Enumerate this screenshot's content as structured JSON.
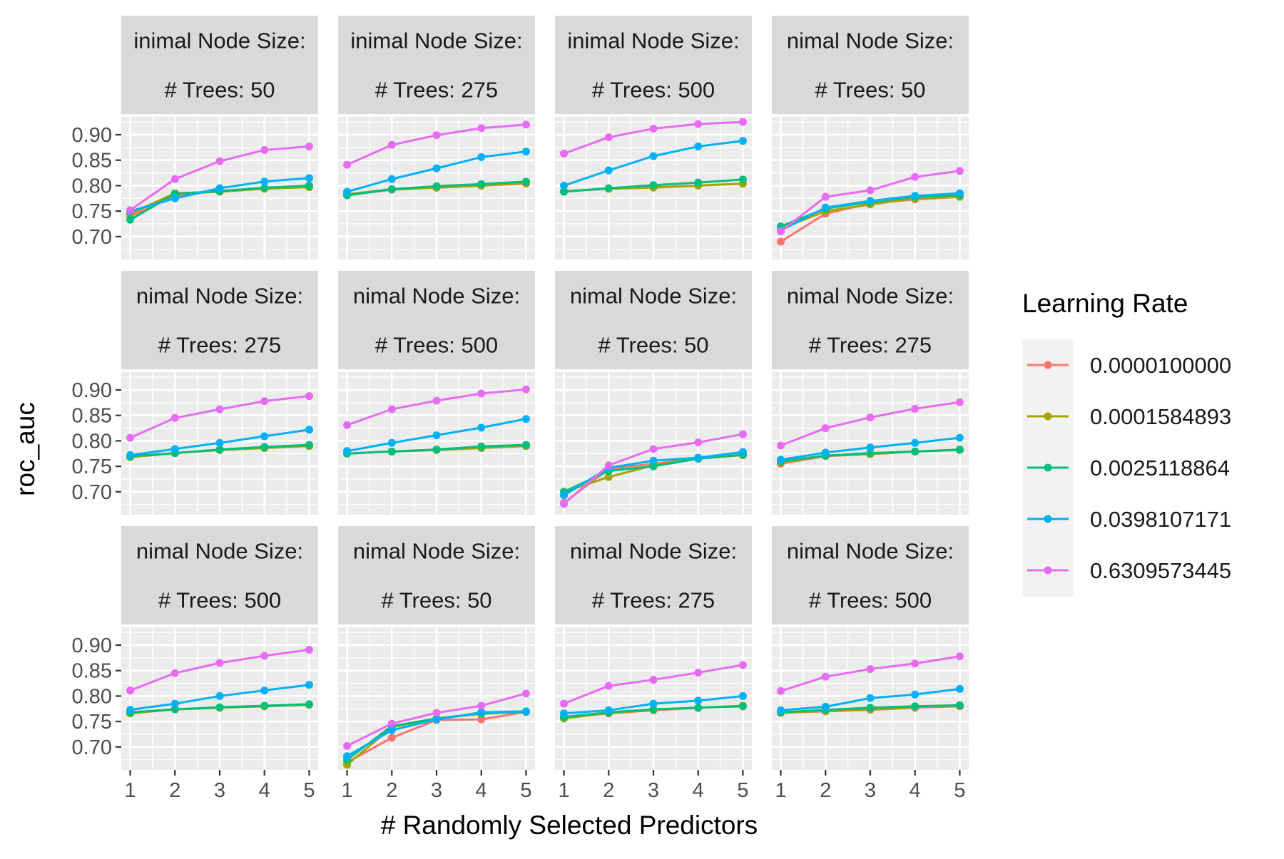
{
  "chart_data": {
    "type": "line",
    "xlabel": "# Randomly Selected Predictors",
    "ylabel": "roc_auc",
    "x": [
      1,
      2,
      3,
      4,
      5
    ],
    "x_ticks": [
      "1",
      "2",
      "3",
      "4",
      "5"
    ],
    "ylim": [
      0.655,
      0.935
    ],
    "y_ticks": [
      "0.70",
      "0.75",
      "0.80",
      "0.85",
      "0.90"
    ],
    "y_tick_values": [
      0.7,
      0.75,
      0.8,
      0.85,
      0.9
    ],
    "grid": true,
    "legend": {
      "title": "Learning Rate",
      "placement": "right",
      "entries": [
        "0.0000100000",
        "0.0001584893",
        "0.0025118864",
        "0.0398107171",
        "0.6309573445"
      ]
    },
    "colors": [
      "#F8766D",
      "#A3A500",
      "#00BF7D",
      "#00B0F6",
      "#E76BF3"
    ],
    "panels": [
      {
        "strip_top": "inimal Node Size:",
        "strip_bottom": "# Trees: 50",
        "series": [
          {
            "name": "0.0000100000",
            "values": [
              0.74,
              0.78,
              0.79,
              0.795,
              0.8
            ]
          },
          {
            "name": "0.0001584893",
            "values": [
              0.745,
              0.785,
              0.788,
              0.794,
              0.797
            ]
          },
          {
            "name": "0.0025118864",
            "values": [
              0.733,
              0.784,
              0.789,
              0.796,
              0.8
            ]
          },
          {
            "name": "0.0398107171",
            "values": [
              0.75,
              0.775,
              0.795,
              0.808,
              0.815
            ]
          },
          {
            "name": "0.6309573445",
            "values": [
              0.752,
              0.813,
              0.848,
              0.87,
              0.877
            ]
          }
        ]
      },
      {
        "strip_top": "inimal Node Size:",
        "strip_bottom": "# Trees: 275",
        "series": [
          {
            "name": "0.0000100000",
            "values": [
              0.782,
              0.792,
              0.796,
              0.8,
              0.804
            ]
          },
          {
            "name": "0.0001584893",
            "values": [
              0.783,
              0.793,
              0.796,
              0.8,
              0.805
            ]
          },
          {
            "name": "0.0025118864",
            "values": [
              0.781,
              0.793,
              0.799,
              0.803,
              0.808
            ]
          },
          {
            "name": "0.0398107171",
            "values": [
              0.788,
              0.813,
              0.834,
              0.856,
              0.867
            ]
          },
          {
            "name": "0.6309573445",
            "values": [
              0.841,
              0.88,
              0.899,
              0.913,
              0.92
            ]
          }
        ]
      },
      {
        "strip_top": "inimal Node Size:",
        "strip_bottom": "# Trees: 500",
        "series": [
          {
            "name": "0.0000100000",
            "values": [
              0.789,
              0.794,
              0.797,
              0.8,
              0.804
            ]
          },
          {
            "name": "0.0001584893",
            "values": [
              0.789,
              0.794,
              0.796,
              0.8,
              0.804
            ]
          },
          {
            "name": "0.0025118864",
            "values": [
              0.788,
              0.795,
              0.801,
              0.806,
              0.812
            ]
          },
          {
            "name": "0.0398107171",
            "values": [
              0.8,
              0.83,
              0.858,
              0.877,
              0.888
            ]
          },
          {
            "name": "0.6309573445",
            "values": [
              0.863,
              0.895,
              0.912,
              0.921,
              0.925
            ]
          }
        ]
      },
      {
        "strip_top": "nimal Node Size:",
        "strip_bottom": "# Trees: 50",
        "series": [
          {
            "name": "0.0000100000",
            "values": [
              0.69,
              0.745,
              0.765,
              0.773,
              0.778
            ]
          },
          {
            "name": "0.0001584893",
            "values": [
              0.715,
              0.75,
              0.763,
              0.775,
              0.778
            ]
          },
          {
            "name": "0.0025118864",
            "values": [
              0.72,
              0.755,
              0.768,
              0.778,
              0.782
            ]
          },
          {
            "name": "0.0398107171",
            "values": [
              0.712,
              0.757,
              0.77,
              0.78,
              0.785
            ]
          },
          {
            "name": "0.6309573445",
            "values": [
              0.71,
              0.778,
              0.791,
              0.817,
              0.829
            ]
          }
        ]
      },
      {
        "strip_top": "nimal Node Size:",
        "strip_bottom": "# Trees: 275",
        "series": [
          {
            "name": "0.0000100000",
            "values": [
              0.768,
              0.776,
              0.782,
              0.786,
              0.79
            ]
          },
          {
            "name": "0.0001584893",
            "values": [
              0.768,
              0.776,
              0.782,
              0.786,
              0.79
            ]
          },
          {
            "name": "0.0025118864",
            "values": [
              0.77,
              0.776,
              0.783,
              0.788,
              0.792
            ]
          },
          {
            "name": "0.0398107171",
            "values": [
              0.772,
              0.784,
              0.796,
              0.809,
              0.822
            ]
          },
          {
            "name": "0.6309573445",
            "values": [
              0.806,
              0.845,
              0.862,
              0.878,
              0.888
            ]
          }
        ]
      },
      {
        "strip_top": "nimal Node Size:",
        "strip_bottom": "# Trees: 500",
        "series": [
          {
            "name": "0.0000100000",
            "values": [
              0.775,
              0.779,
              0.782,
              0.786,
              0.79
            ]
          },
          {
            "name": "0.0001584893",
            "values": [
              0.775,
              0.779,
              0.782,
              0.786,
              0.79
            ]
          },
          {
            "name": "0.0025118864",
            "values": [
              0.775,
              0.779,
              0.783,
              0.789,
              0.792
            ]
          },
          {
            "name": "0.0398107171",
            "values": [
              0.78,
              0.796,
              0.811,
              0.826,
              0.843
            ]
          },
          {
            "name": "0.6309573445",
            "values": [
              0.831,
              0.862,
              0.879,
              0.893,
              0.901
            ]
          }
        ]
      },
      {
        "strip_top": "nimal Node Size:",
        "strip_bottom": "# Trees: 50",
        "series": [
          {
            "name": "0.0000100000",
            "values": [
              0.678,
              0.745,
              0.755,
              0.765,
              0.772
            ]
          },
          {
            "name": "0.0001584893",
            "values": [
              0.7,
              0.729,
              0.752,
              0.766,
              0.772
            ]
          },
          {
            "name": "0.0025118864",
            "values": [
              0.7,
              0.741,
              0.75,
              0.765,
              0.773
            ]
          },
          {
            "name": "0.0398107171",
            "values": [
              0.693,
              0.747,
              0.761,
              0.767,
              0.778
            ]
          },
          {
            "name": "0.6309573445",
            "values": [
              0.676,
              0.752,
              0.784,
              0.797,
              0.813
            ]
          }
        ]
      },
      {
        "strip_top": "nimal Node Size:",
        "strip_bottom": "# Trees: 275",
        "series": [
          {
            "name": "0.0000100000",
            "values": [
              0.755,
              0.77,
              0.774,
              0.779,
              0.782
            ]
          },
          {
            "name": "0.0001584893",
            "values": [
              0.758,
              0.771,
              0.774,
              0.779,
              0.782
            ]
          },
          {
            "name": "0.0025118864",
            "values": [
              0.76,
              0.771,
              0.776,
              0.779,
              0.783
            ]
          },
          {
            "name": "0.0398107171",
            "values": [
              0.763,
              0.777,
              0.787,
              0.796,
              0.806
            ]
          },
          {
            "name": "0.6309573445",
            "values": [
              0.791,
              0.825,
              0.846,
              0.863,
              0.876
            ]
          }
        ]
      },
      {
        "strip_top": "nimal Node Size:",
        "strip_bottom": "# Trees: 500",
        "series": [
          {
            "name": "0.0000100000",
            "values": [
              0.768,
              0.774,
              0.777,
              0.78,
              0.783
            ]
          },
          {
            "name": "0.0001584893",
            "values": [
              0.766,
              0.774,
              0.777,
              0.78,
              0.783
            ]
          },
          {
            "name": "0.0025118864",
            "values": [
              0.768,
              0.774,
              0.778,
              0.781,
              0.784
            ]
          },
          {
            "name": "0.0398107171",
            "values": [
              0.773,
              0.785,
              0.8,
              0.811,
              0.822
            ]
          },
          {
            "name": "0.6309573445",
            "values": [
              0.811,
              0.845,
              0.865,
              0.879,
              0.891
            ]
          }
        ]
      },
      {
        "strip_top": "nimal Node Size:",
        "strip_bottom": "# Trees: 50",
        "series": [
          {
            "name": "0.0000100000",
            "values": [
              0.67,
              0.718,
              0.753,
              0.754,
              0.769
            ]
          },
          {
            "name": "0.0001584893",
            "values": [
              0.665,
              0.739,
              0.756,
              0.765,
              0.77
            ]
          },
          {
            "name": "0.0025118864",
            "values": [
              0.675,
              0.741,
              0.756,
              0.766,
              0.769
            ]
          },
          {
            "name": "0.0398107171",
            "values": [
              0.682,
              0.733,
              0.754,
              0.768,
              0.77
            ]
          },
          {
            "name": "0.6309573445",
            "values": [
              0.702,
              0.746,
              0.767,
              0.781,
              0.805
            ]
          }
        ]
      },
      {
        "strip_top": "nimal Node Size:",
        "strip_bottom": "# Trees: 275",
        "series": [
          {
            "name": "0.0000100000",
            "values": [
              0.758,
              0.766,
              0.772,
              0.777,
              0.78
            ]
          },
          {
            "name": "0.0001584893",
            "values": [
              0.756,
              0.767,
              0.773,
              0.777,
              0.781
            ]
          },
          {
            "name": "0.0025118864",
            "values": [
              0.759,
              0.768,
              0.774,
              0.777,
              0.78
            ]
          },
          {
            "name": "0.0398107171",
            "values": [
              0.766,
              0.772,
              0.785,
              0.791,
              0.8
            ]
          },
          {
            "name": "0.6309573445",
            "values": [
              0.785,
              0.82,
              0.832,
              0.846,
              0.861
            ]
          }
        ]
      },
      {
        "strip_top": "nimal Node Size:",
        "strip_bottom": "# Trees: 500",
        "series": [
          {
            "name": "0.0000100000",
            "values": [
              0.767,
              0.77,
              0.773,
              0.777,
              0.78
            ]
          },
          {
            "name": "0.0001584893",
            "values": [
              0.767,
              0.771,
              0.774,
              0.778,
              0.781
            ]
          },
          {
            "name": "0.0025118864",
            "values": [
              0.768,
              0.773,
              0.777,
              0.78,
              0.782
            ]
          },
          {
            "name": "0.0398107171",
            "values": [
              0.772,
              0.779,
              0.796,
              0.803,
              0.814
            ]
          },
          {
            "name": "0.6309573445",
            "values": [
              0.81,
              0.838,
              0.853,
              0.864,
              0.878
            ]
          }
        ]
      }
    ]
  }
}
